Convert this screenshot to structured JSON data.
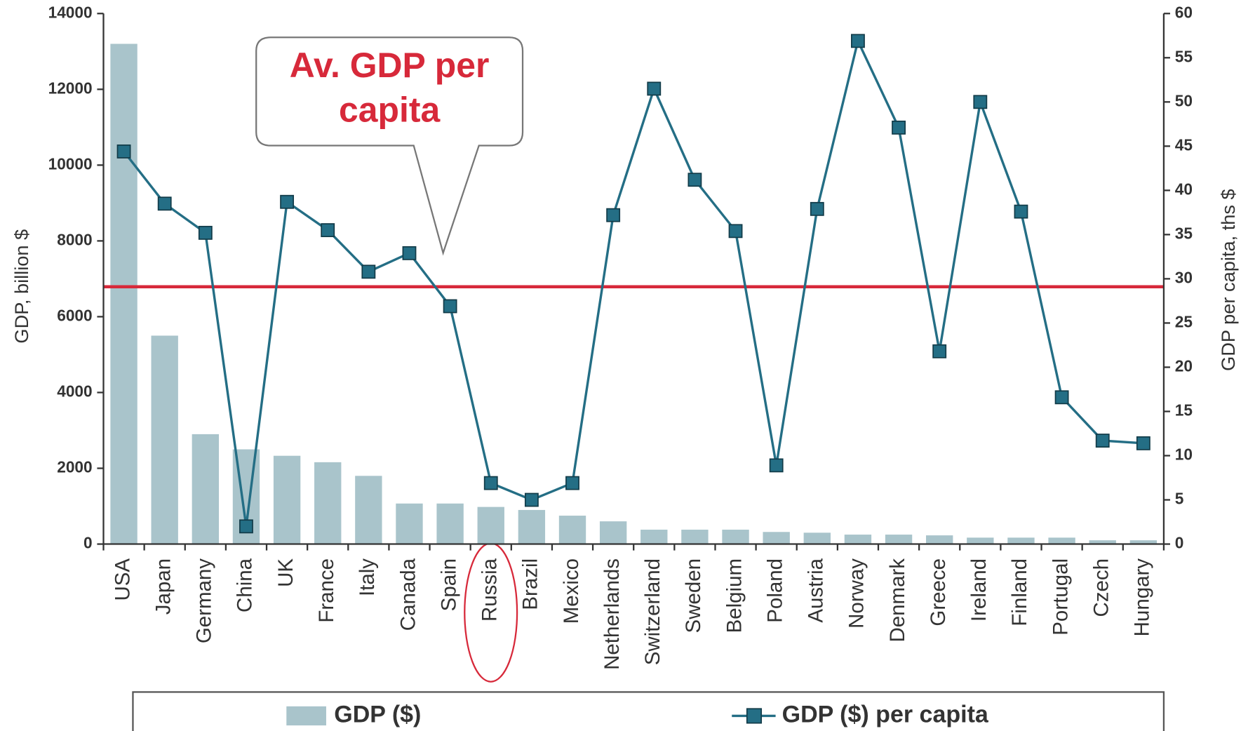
{
  "chart_data": {
    "type": "bar",
    "annotation": "Av. GDP per capita",
    "ylabel": "GDP, billion $",
    "y2label": "GDP per capita, ths $",
    "categories": [
      "USA",
      "Japan",
      "Germany",
      "China",
      "UK",
      "France",
      "Italy",
      "Canada",
      "Spain",
      "Russia",
      "Brazil",
      "Mexico",
      "Netherlands",
      "Switzerland",
      "Sweden",
      "Belgium",
      "Poland",
      "Austria",
      "Norway",
      "Denmark",
      "Greece",
      "Ireland",
      "Finland",
      "Portugal",
      "Czech",
      "Hungary"
    ],
    "series": [
      {
        "name": "GDP ($)",
        "type": "bar",
        "color": "#a9c4cb",
        "values": [
          13200,
          5500,
          2900,
          2500,
          2330,
          2160,
          1800,
          1070,
          1070,
          980,
          900,
          750,
          600,
          380,
          380,
          380,
          320,
          300,
          250,
          250,
          230,
          170,
          170,
          170,
          100,
          100
        ]
      },
      {
        "name": "GDP ($) per capita",
        "type": "line",
        "axis": "y2",
        "color": "#246e85",
        "values": [
          44.4,
          38.5,
          35.2,
          2.0,
          38.7,
          35.5,
          30.8,
          32.9,
          26.9,
          6.9,
          5.0,
          6.9,
          37.2,
          51.5,
          41.2,
          35.4,
          8.9,
          37.9,
          56.9,
          47.1,
          21.8,
          50.0,
          37.6,
          16.6,
          11.7,
          11.4
        ]
      }
    ],
    "average_line": 29.1,
    "average_color": "#d7293a",
    "ylim": [
      0,
      14000
    ],
    "yticks": [
      0,
      2000,
      4000,
      6000,
      8000,
      10000,
      12000,
      14000
    ],
    "y2lim": [
      0,
      60
    ],
    "y2ticks": [
      0,
      5,
      10,
      15,
      20,
      25,
      30,
      35,
      40,
      45,
      50,
      55,
      60
    ],
    "grid": false
  }
}
